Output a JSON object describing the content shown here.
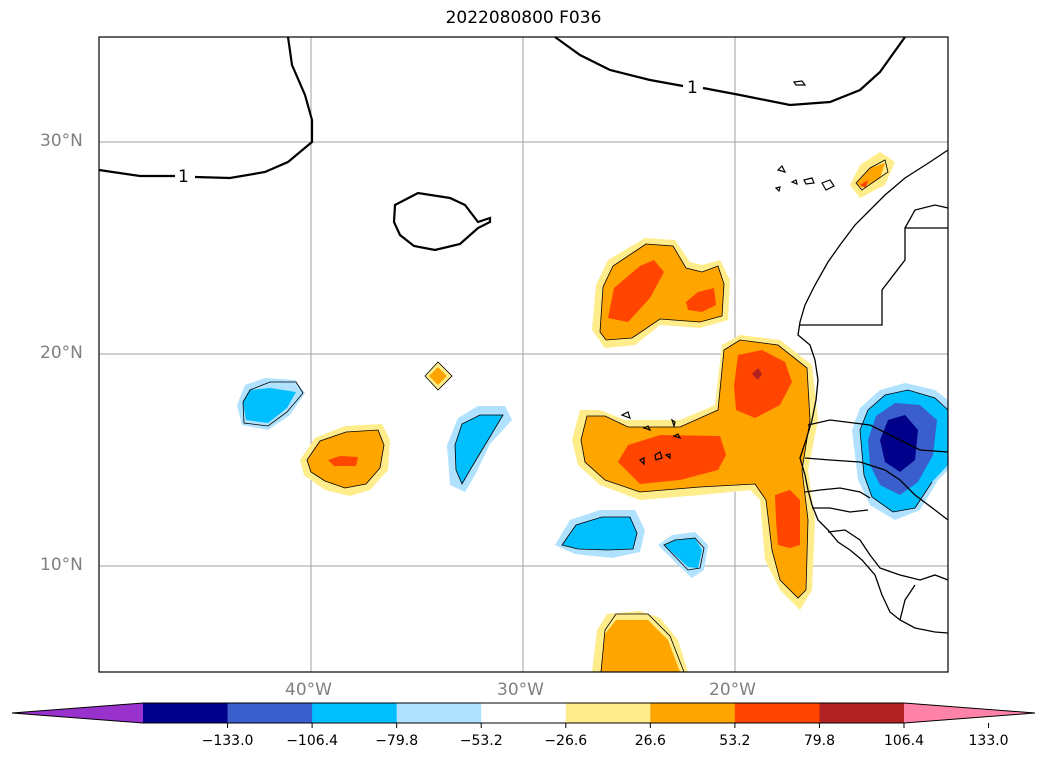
{
  "title": "2022080800 F036",
  "map": {
    "lat_labels": [
      "30°N",
      "20°N",
      "10°N"
    ],
    "lon_labels": [
      "40°W",
      "30°W",
      "20°W"
    ],
    "contour_label": "1",
    "extent": {
      "lon": [
        -50,
        -10
      ],
      "lat": [
        5,
        35
      ]
    }
  },
  "colorbar": {
    "colors": [
      "#9932cc",
      "#00008b",
      "#3a5fcd",
      "#00bfff",
      "#b0e2ff",
      "#ffffff",
      "#ffec8b",
      "#ffa500",
      "#ff4500",
      "#b22222",
      "#ff83a8"
    ],
    "tick_labels": [
      "−133.0",
      "−106.4",
      "−79.8",
      "−53.2",
      "−26.6",
      "26.6",
      "53.2",
      "79.8",
      "106.4",
      "133.0"
    ],
    "extend": "both"
  }
}
